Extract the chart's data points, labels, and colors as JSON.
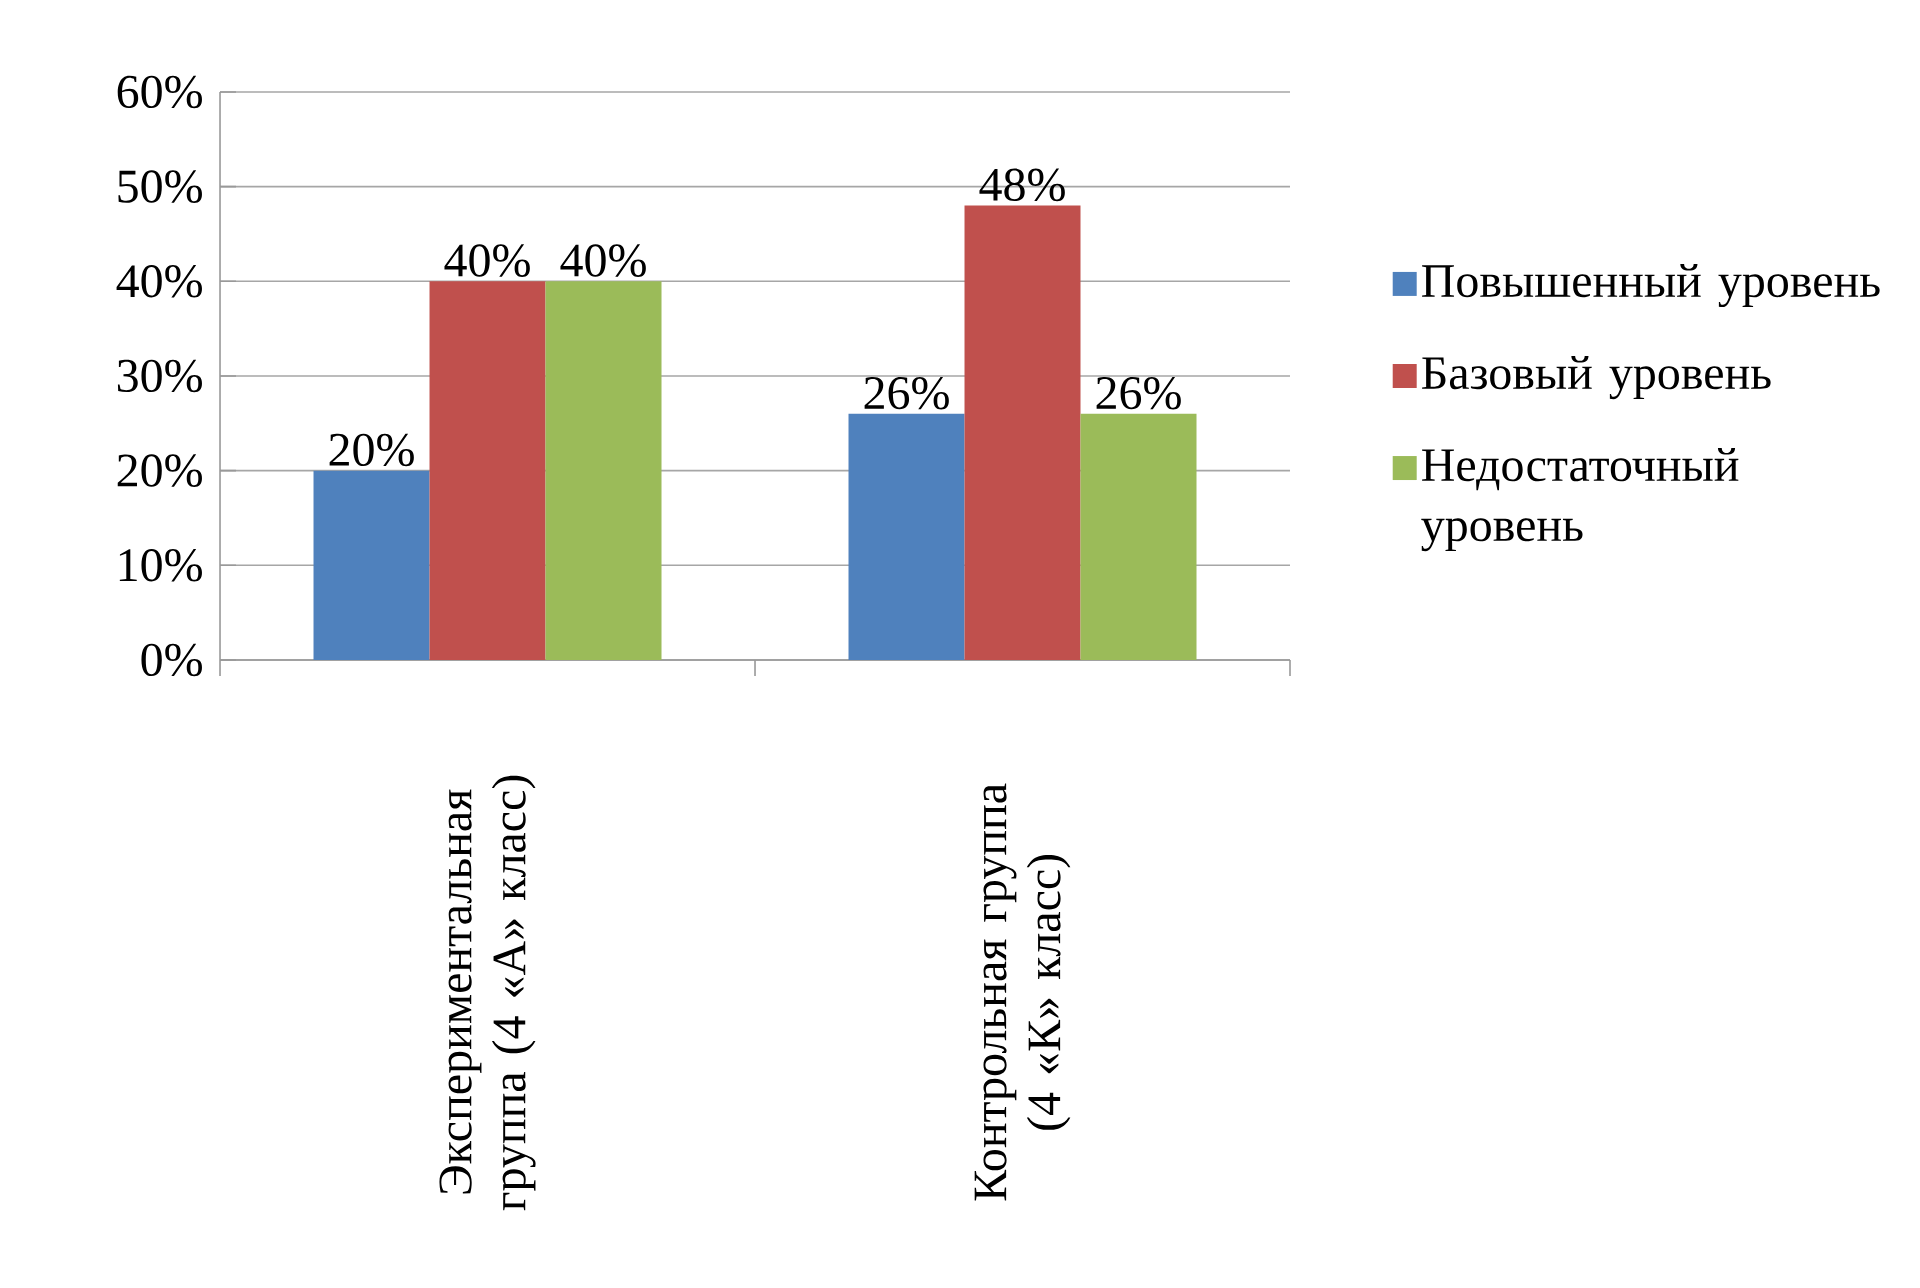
{
  "chart_data": {
    "type": "bar",
    "categories": [
      "Экспериментальная группа (4 «А» класс)",
      "Контрольная группа (4 «К» класс)"
    ],
    "series": [
      {
        "name": "Повышенный уровень",
        "color": "#4f81bd",
        "values": [
          20,
          26
        ],
        "value_labels": [
          "20%",
          "26%"
        ]
      },
      {
        "name": "Базовый уровень",
        "color": "#c0504d",
        "values": [
          40,
          48
        ],
        "value_labels": [
          "40%",
          "48%"
        ]
      },
      {
        "name": "Недостаточный уровень",
        "color": "#9bbb59",
        "values": [
          40,
          26
        ],
        "value_labels": [
          "40%",
          "26%"
        ]
      }
    ],
    "ylim": [
      0,
      60
    ],
    "yticks": [
      {
        "value": 0,
        "label": "0%"
      },
      {
        "value": 10,
        "label": "10%"
      },
      {
        "value": 20,
        "label": "20%"
      },
      {
        "value": 30,
        "label": "30%"
      },
      {
        "value": 40,
        "label": "40%"
      },
      {
        "value": 50,
        "label": "50%"
      },
      {
        "value": 60,
        "label": "60%"
      }
    ],
    "grid": "y",
    "legend": "right"
  }
}
